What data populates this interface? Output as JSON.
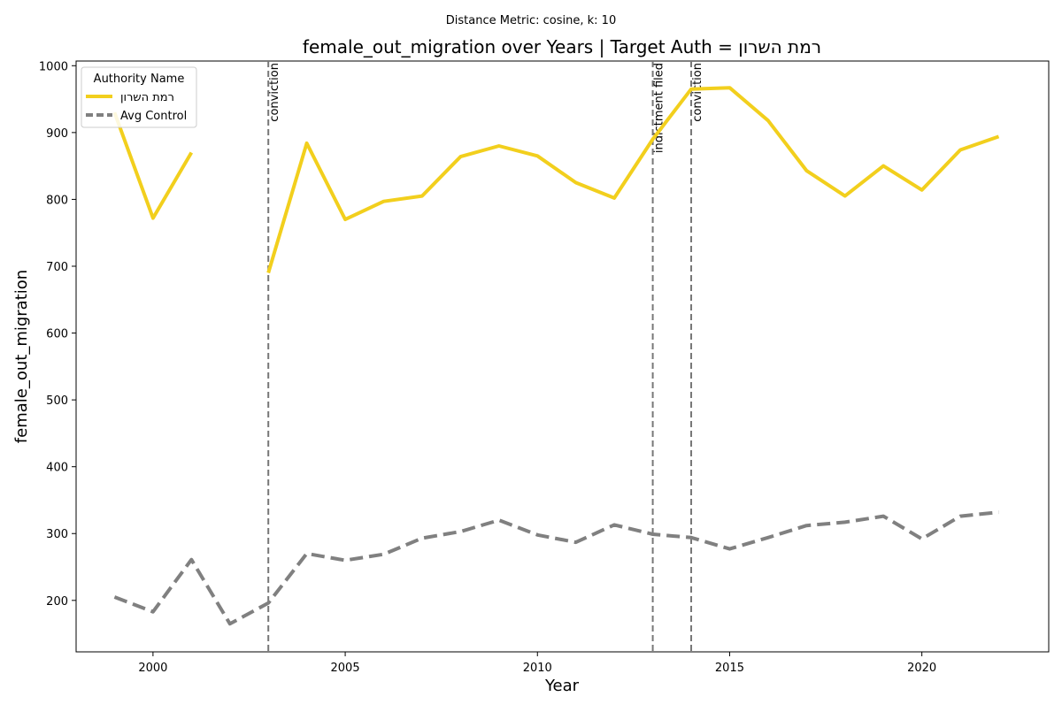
{
  "chart_data": {
    "type": "line",
    "suptitle": "Distance Metric: cosine, k: 10",
    "title": "female_out_migration over Years | Target Auth = רמת השרון",
    "xlabel": "Year",
    "ylabel": "female_out_migration",
    "xlim": [
      1998,
      2023.3
    ],
    "ylim": [
      123,
      1007
    ],
    "xticks": [
      2000,
      2005,
      2010,
      2015,
      2020
    ],
    "yticks": [
      200,
      300,
      400,
      500,
      600,
      700,
      800,
      900,
      1000
    ],
    "grid": false,
    "legend": {
      "title": "Authority Name",
      "placement": "top-left"
    },
    "series": [
      {
        "name": "רמת השרון",
        "color": "#f2cf1d",
        "style": "solid",
        "points": [
          [
            1999,
            930
          ],
          [
            2000,
            772
          ],
          [
            2001,
            870
          ],
          [
            2002,
            null
          ],
          [
            2003,
            690
          ],
          [
            2004,
            884
          ],
          [
            2005,
            770
          ],
          [
            2006,
            797
          ],
          [
            2007,
            805
          ],
          [
            2008,
            864
          ],
          [
            2009,
            880
          ],
          [
            2010,
            865
          ],
          [
            2011,
            825
          ],
          [
            2012,
            802
          ],
          [
            2013,
            890
          ],
          [
            2014,
            965
          ],
          [
            2015,
            967
          ],
          [
            2016,
            918
          ],
          [
            2017,
            843
          ],
          [
            2018,
            805
          ],
          [
            2019,
            850
          ],
          [
            2020,
            814
          ],
          [
            2021,
            874
          ],
          [
            2022,
            894
          ]
        ]
      },
      {
        "name": "Avg Control",
        "color": "#808080",
        "style": "dashed",
        "points": [
          [
            1999,
            205
          ],
          [
            2000,
            183
          ],
          [
            2001,
            261
          ],
          [
            2002,
            165
          ],
          [
            2003,
            196
          ],
          [
            2004,
            270
          ],
          [
            2005,
            260
          ],
          [
            2006,
            269
          ],
          [
            2007,
            293
          ],
          [
            2008,
            303
          ],
          [
            2009,
            320
          ],
          [
            2010,
            298
          ],
          [
            2011,
            287
          ],
          [
            2012,
            313
          ],
          [
            2013,
            299
          ],
          [
            2014,
            294
          ],
          [
            2015,
            277
          ],
          [
            2016,
            294
          ],
          [
            2017,
            312
          ],
          [
            2018,
            317
          ],
          [
            2019,
            326
          ],
          [
            2020,
            292
          ],
          [
            2021,
            326
          ],
          [
            2022,
            332
          ]
        ]
      }
    ],
    "events": [
      {
        "year": 2003,
        "label": "conviction"
      },
      {
        "year": 2013,
        "label": "indictment filed"
      },
      {
        "year": 2014,
        "label": "conviction"
      }
    ]
  }
}
